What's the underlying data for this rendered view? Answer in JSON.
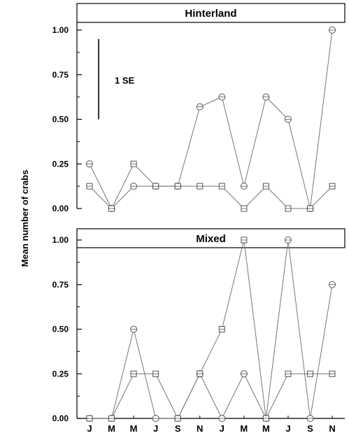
{
  "chart_data": {
    "type": "line",
    "ylabel": "Mean number of crabs",
    "xlabel": "",
    "categories": [
      "J",
      "M",
      "M",
      "J",
      "S",
      "N",
      "J",
      "M",
      "M",
      "J",
      "S",
      "N"
    ],
    "yticks": [
      "0.00",
      "0.25",
      "0.50",
      "0.75",
      "1.00"
    ],
    "ylim": [
      0,
      1.07
    ],
    "grid": false,
    "panels": [
      {
        "title": "Hinterland",
        "annotation": "1 SE",
        "se_bar": {
          "from": 0.5,
          "to": 0.95
        },
        "series": [
          {
            "marker": "circle",
            "values": [
              0.25,
              0.0,
              0.125,
              0.125,
              0.125,
              0.57,
              0.625,
              0.125,
              0.625,
              0.5,
              0.0,
              1.0
            ]
          },
          {
            "marker": "square",
            "values": [
              0.125,
              0.0,
              0.25,
              0.125,
              0.125,
              0.125,
              0.125,
              0.0,
              0.125,
              0.0,
              0.0,
              0.125
            ]
          }
        ]
      },
      {
        "title": "Mixed",
        "series": [
          {
            "marker": "circle",
            "values": [
              0.0,
              0.0,
              0.5,
              0.0,
              0.0,
              0.25,
              0.0,
              0.25,
              0.0,
              1.0,
              0.0,
              0.75
            ]
          },
          {
            "marker": "square",
            "values": [
              0.0,
              0.0,
              0.25,
              0.25,
              0.0,
              0.25,
              0.5,
              1.0,
              0.0,
              0.25,
              0.25,
              0.25
            ]
          }
        ]
      }
    ],
    "colors": {
      "line": "#777777",
      "marker": "#555555",
      "axis": "#000000"
    }
  }
}
